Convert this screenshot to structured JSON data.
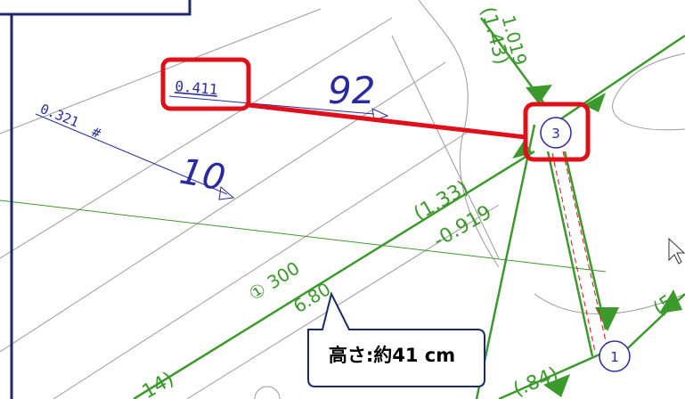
{
  "labels": {
    "pipe_a_value": "0.411",
    "pipe_a_number": "92",
    "pipe_b_value": "0.321",
    "pipe_b_mark": "#",
    "pipe_b_number": "10",
    "node_3": "3",
    "node_1": "1",
    "flow_upper_1": "(1.43)",
    "flow_upper_2": "1.019",
    "flow_mid_1": "(1.33)",
    "flow_mid_2": "-0.919",
    "pipe_label_1": "① 300",
    "pipe_label_2": "6.80",
    "flow_right": "(5",
    "flow_bottom": "(.84)",
    "flow_bottom_left": "14)"
  },
  "callout": {
    "text": "高さ:約41 cm"
  },
  "colors": {
    "pipe_green": "#3c9a2c",
    "text_blue": "#2a2aa0",
    "highlight_red": "#e0101a",
    "frame_navy": "#1b2a6b",
    "grid_gray": "#9a9a9a"
  }
}
